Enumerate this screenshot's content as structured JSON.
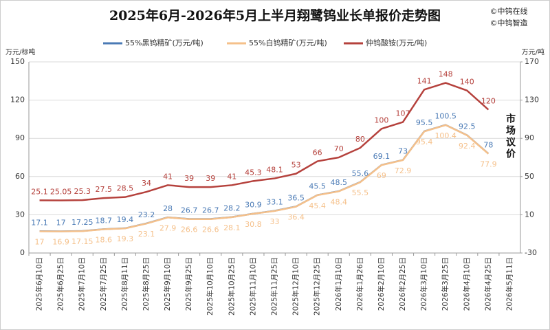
{
  "chart_data": {
    "type": "line",
    "title": "2025年6月-2026年5月上半月翔鹭钨业长单报价走势图",
    "watermarks": [
      "©中钨在线",
      "©中钨智造"
    ],
    "y_label": "万元/标吨",
    "y2_label": "万元/吨",
    "annotation": "市场议价",
    "categories": [
      "2025年6月10日",
      "2025年6月25日",
      "2025年7月10日",
      "2025年7月25日",
      "2025年8月11日",
      "2025年8月25日",
      "2025年9月10日",
      "2025年9月25日",
      "2025年10月10日",
      "2025年10月25日",
      "2025年11月10日",
      "2025年11月25日",
      "2025年12月10日",
      "2025年12月25日",
      "2026年1月10日",
      "2026年1月26日",
      "2026年2月10日",
      "2026年2月25日",
      "2026年3月10日",
      "2026年3月25日",
      "2026年4月10日",
      "2026年4月25日",
      "2026年5月11日"
    ],
    "series": [
      {
        "name": "55%黑钨精矿(万元/吨)",
        "color": "#4a7ab5",
        "values": [
          17.1,
          17,
          17.25,
          18.7,
          19.4,
          23.2,
          28,
          26.7,
          26.7,
          28.2,
          30.9,
          33.1,
          36.5,
          45.5,
          48.5,
          55.6,
          69.1,
          73,
          95.5,
          100.5,
          92.5,
          78,
          null
        ]
      },
      {
        "name": "55%白钨精矿(万元/吨)",
        "color": "#f5c08a",
        "values": [
          17,
          16.9,
          17.15,
          18.6,
          19.3,
          23.1,
          27.9,
          26.6,
          26.6,
          28.1,
          30.8,
          33,
          36.4,
          45.4,
          48.4,
          55.5,
          69,
          72.9,
          95.4,
          100.4,
          92.4,
          77.9,
          null
        ]
      },
      {
        "name": "仲钨酸铵(万元/吨)",
        "color": "#b5413c",
        "axis": "y2",
        "values": [
          25.1,
          25.05,
          25.3,
          27.5,
          28.5,
          34,
          41,
          39,
          39,
          41,
          45.3,
          48.1,
          53,
          66,
          70,
          80,
          100,
          107,
          141,
          148,
          140,
          120,
          null
        ]
      }
    ],
    "ylim": [
      0,
      150
    ],
    "yticks": [
      0,
      30,
      60,
      90,
      120,
      150
    ],
    "y2lim": [
      -30,
      170
    ],
    "y2ticks": [
      -30,
      10,
      50,
      90,
      130,
      170
    ],
    "grid": true
  }
}
